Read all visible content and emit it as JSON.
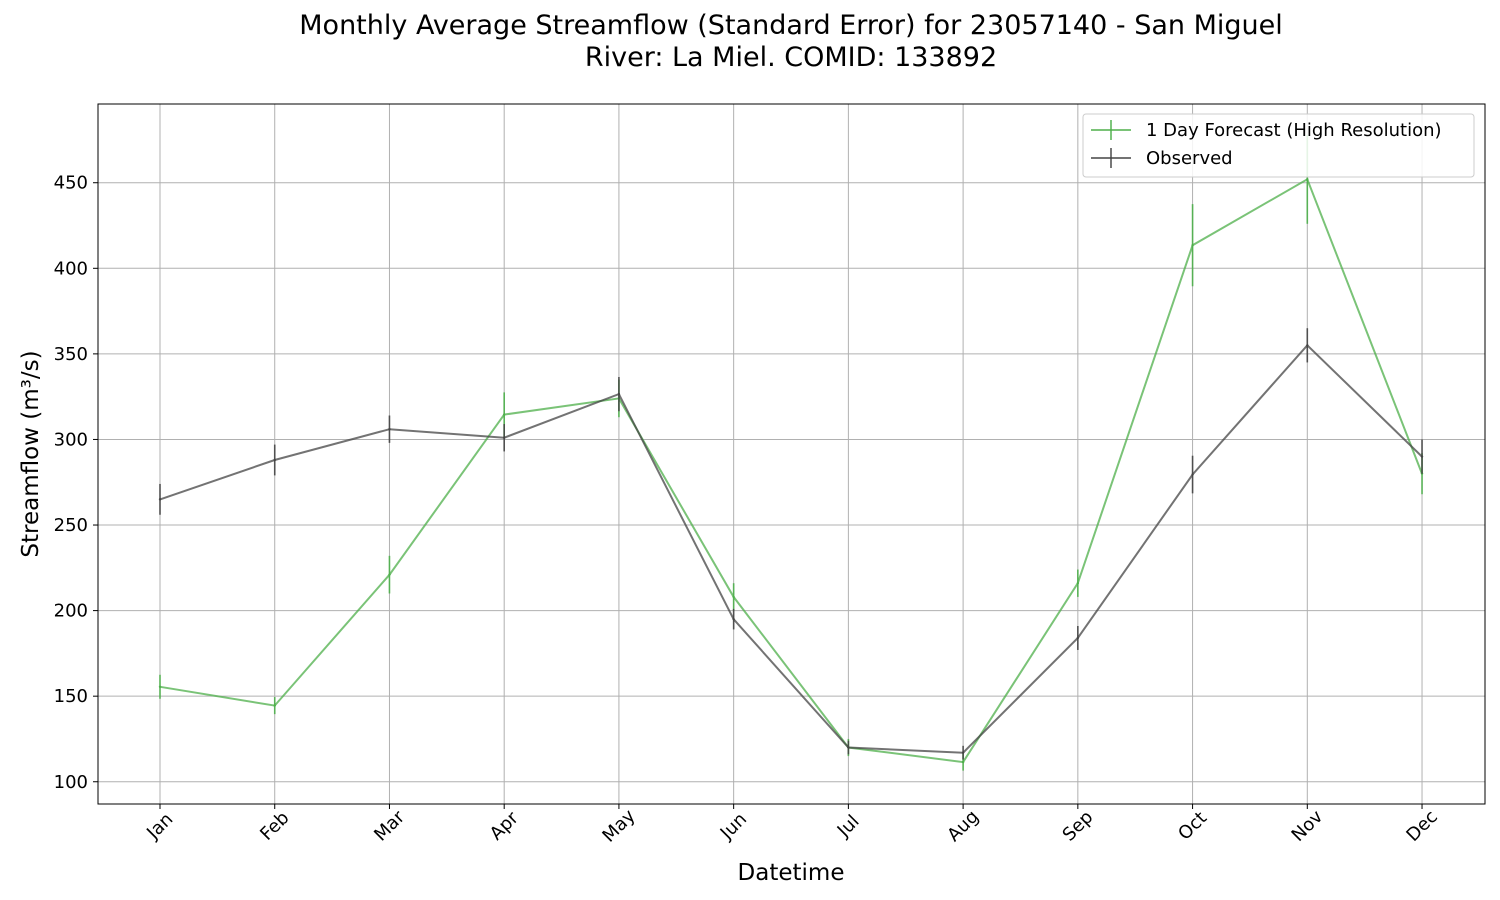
{
  "chart_data": {
    "type": "line",
    "title_line1": "Monthly Average Streamflow (Standard Error) for 23057140 - San Miguel",
    "title_line2": "River: La Miel. COMID: 133892",
    "xlabel": "Datetime",
    "ylabel": "Streamflow (m³/s)",
    "categories": [
      "Jan",
      "Feb",
      "Mar",
      "Apr",
      "May",
      "Jun",
      "Jul",
      "Aug",
      "Sep",
      "Oct",
      "Nov",
      "Dec"
    ],
    "yticks": [
      100,
      150,
      200,
      250,
      300,
      350,
      400,
      450
    ],
    "ylim": [
      87,
      496
    ],
    "grid": true,
    "legend_position": "top-right",
    "series": [
      {
        "name": "1 Day Forecast (High Resolution)",
        "color": "#4daf4a",
        "values": [
          155.5,
          144.5,
          221,
          314.5,
          324,
          208,
          120,
          111.5,
          216,
          413.5,
          452,
          280
        ],
        "errors": [
          7,
          5,
          11,
          13,
          11,
          8,
          5,
          5,
          8,
          24,
          26,
          12
        ]
      },
      {
        "name": "Observed",
        "color": "#444444",
        "values": [
          265,
          288,
          306,
          301,
          326.5,
          195,
          120,
          117,
          184,
          279.5,
          355,
          290
        ],
        "errors": [
          9,
          9,
          8,
          8,
          10,
          6,
          4,
          4,
          7,
          11,
          10,
          10
        ]
      }
    ]
  }
}
